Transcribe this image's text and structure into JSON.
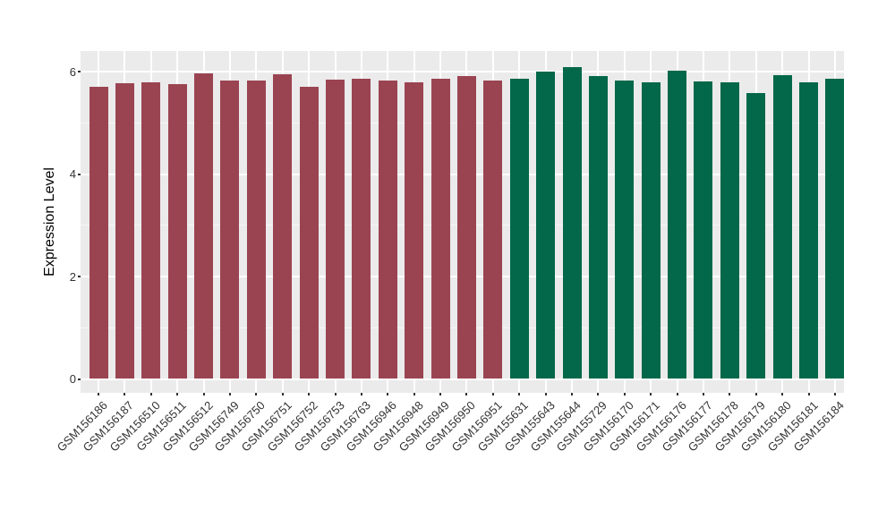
{
  "chart_data": {
    "type": "bar",
    "title": "",
    "xlabel": "",
    "ylabel": "Expression Level",
    "ylim": [
      0,
      6.4
    ],
    "yticks": [
      0,
      2,
      4,
      6
    ],
    "yticks_minor": [
      1,
      3,
      5
    ],
    "grid": "on",
    "legend": "none",
    "categories": [
      "GSM156186",
      "GSM156187",
      "GSM156510",
      "GSM156511",
      "GSM156512",
      "GSM156749",
      "GSM156750",
      "GSM156751",
      "GSM156752",
      "GSM156753",
      "GSM156763",
      "GSM156946",
      "GSM156948",
      "GSM156949",
      "GSM156950",
      "GSM156951",
      "GSM155631",
      "GSM155643",
      "GSM155644",
      "GSM155729",
      "GSM156170",
      "GSM156171",
      "GSM156176",
      "GSM156177",
      "GSM156178",
      "GSM156179",
      "GSM156180",
      "GSM156181",
      "GSM156184"
    ],
    "values": [
      5.7,
      5.77,
      5.8,
      5.76,
      5.97,
      5.83,
      5.83,
      5.95,
      5.71,
      5.85,
      5.87,
      5.83,
      5.8,
      5.86,
      5.92,
      5.83,
      5.87,
      6.01,
      6.1,
      5.92,
      5.83,
      5.79,
      6.03,
      5.82,
      5.79,
      5.58,
      5.93,
      5.79,
      5.86
    ],
    "groups": [
      "maroon",
      "maroon",
      "maroon",
      "maroon",
      "maroon",
      "maroon",
      "maroon",
      "maroon",
      "maroon",
      "maroon",
      "maroon",
      "maroon",
      "maroon",
      "maroon",
      "maroon",
      "maroon",
      "green",
      "green",
      "green",
      "green",
      "green",
      "green",
      "green",
      "green",
      "green",
      "green",
      "green",
      "green",
      "green"
    ],
    "group_colors": {
      "maroon": "#9A4452",
      "green": "#036849"
    },
    "colors": {
      "panel_background": "#EBEBEB",
      "grid_major": "#FFFFFF",
      "grid_minor": "#F7F7F7",
      "axis_text": "#333333",
      "axis_title": "#000000",
      "tick_mark": "#333333",
      "page_background": "#FFFFFF"
    }
  }
}
